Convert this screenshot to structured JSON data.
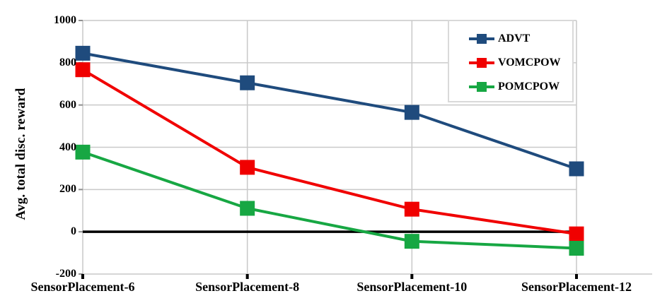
{
  "chart_data": {
    "type": "line",
    "marker": "square",
    "title": "",
    "xlabel": "",
    "ylabel": "Avg. total disc. reward",
    "categories": [
      "SensorPlacement-6",
      "SensorPlacement-8",
      "SensorPlacement-10",
      "SensorPlacement-12"
    ],
    "series": [
      {
        "name": "ADVT",
        "color": "#1F4B7D",
        "values": [
          845,
          705,
          565,
          298
        ]
      },
      {
        "name": "VOMCPOW",
        "color": "#F00000",
        "values": [
          767,
          305,
          107,
          -10
        ]
      },
      {
        "name": "POMCPOW",
        "color": "#17A743",
        "values": [
          377,
          111,
          -45,
          -78
        ]
      }
    ],
    "ylim": [
      -200,
      1000
    ],
    "yticks": [
      1000,
      800,
      600,
      400,
      200,
      0,
      -200
    ],
    "grid": true,
    "zero_line": true,
    "legend_position": "top-right",
    "colors": {
      "gridline": "#C9C9C9",
      "zero_line": "#000000",
      "tick": "#000000",
      "background": "#FFFFFF"
    }
  }
}
